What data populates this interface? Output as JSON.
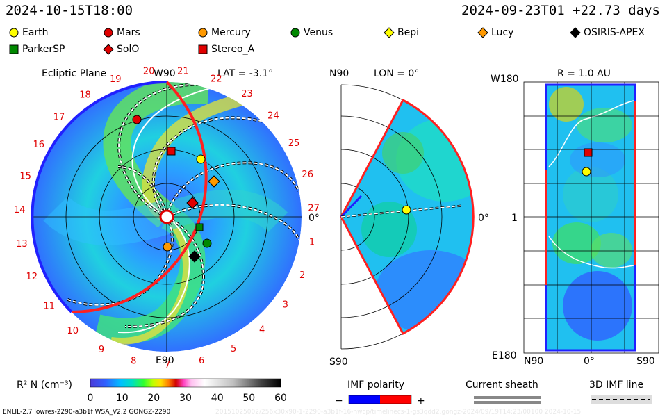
{
  "header": {
    "date_left": "2024-10-15T18:00",
    "date_right": "2024-09-23T01 +22.73 days"
  },
  "legend": [
    {
      "name": "Earth",
      "shape": "circle",
      "color": "#ffff00"
    },
    {
      "name": "Mars",
      "shape": "circle",
      "color": "#e00000"
    },
    {
      "name": "Mercury",
      "shape": "circle",
      "color": "#ff9900"
    },
    {
      "name": "Venus",
      "shape": "circle",
      "color": "#008800"
    },
    {
      "name": "Bepi",
      "shape": "diamond",
      "color": "#ffff00"
    },
    {
      "name": "Lucy",
      "shape": "diamond",
      "color": "#ff9900"
    },
    {
      "name": "OSIRIS-APEX",
      "shape": "diamond",
      "color": "#000000"
    },
    {
      "name": "ParkerSP",
      "shape": "square",
      "color": "#008800"
    },
    {
      "name": "SolO",
      "shape": "diamond",
      "color": "#e00000"
    },
    {
      "name": "Stereo_A",
      "shape": "square",
      "color": "#e00000"
    }
  ],
  "panels": {
    "ecliptic": {
      "title": "Ecliptic Plane",
      "lat": "LAT = -3.1°",
      "top_label": "W90",
      "bottom_label": "E90",
      "right_label": "0°"
    },
    "meridional": {
      "top_label": "N90",
      "lon": "LON = 0°",
      "bottom_label": "S90",
      "right_label": "0°"
    },
    "sphere": {
      "title": "R = 1.0 AU",
      "top_left": "W180",
      "mid_left": "1",
      "bottom_left": "E180",
      "x_left": "N90",
      "x_mid": "0°",
      "x_right": "S90"
    }
  },
  "chart_data": {
    "type": "heatmap",
    "colorbar": {
      "label": "R² N (cm⁻³)",
      "ticks": [
        0,
        10,
        20,
        30,
        40,
        50,
        60
      ],
      "range": [
        0,
        60
      ]
    },
    "carrington_labels": [
      "20",
      "21",
      "22",
      "23",
      "24",
      "25",
      "26",
      "27",
      "1",
      "2",
      "3",
      "4",
      "5",
      "6",
      "7",
      "8",
      "9",
      "10",
      "11",
      "12",
      "13",
      "14",
      "15",
      "16",
      "17",
      "18",
      "19"
    ]
  },
  "imf": {
    "title": "IMF polarity",
    "minus": "−",
    "plus": "+",
    "neg_color": "#0000ff",
    "pos_color": "#ff0000"
  },
  "sheath": {
    "title": "Current sheath"
  },
  "imf3d": {
    "title": "3D IMF line"
  },
  "footer": {
    "left": "ENLIL-2.7 lowres-2290-a3b1f WSA_V2.2 GONGZ-2290",
    "right": "20151025002/256x30x90-1-2290-a3b1f-16-hwcp/timelinecs-1-gs3qdd2.gongz-2024/09/19T14:23/00100  2024-10-15"
  }
}
